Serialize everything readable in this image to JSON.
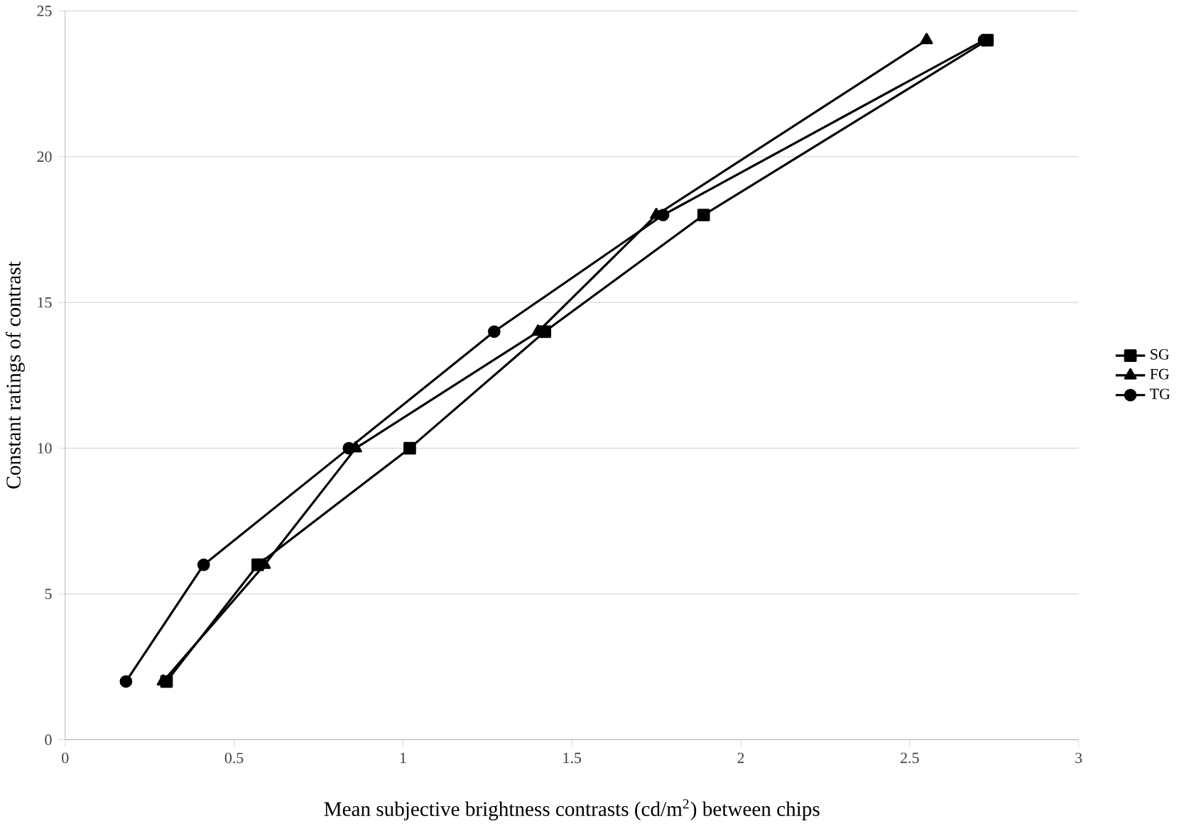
{
  "chart_data": {
    "type": "line",
    "xlabel": "Mean subjective brightness contrasts (cd/m$^{2}$) between chips",
    "ylabel": "Constant ratings of contrast",
    "xlim": [
      0,
      3
    ],
    "xticks": [
      0,
      0.5,
      1,
      1.5,
      2,
      2.5,
      3
    ],
    "ylim": [
      0,
      25
    ],
    "yticks": [
      0,
      5,
      10,
      15,
      20,
      25
    ],
    "grid": "y",
    "legend": "right",
    "color": "#000000",
    "series": [
      {
        "name": "SG",
        "marker": "square",
        "x": [
          0.3,
          0.57,
          1.02,
          1.42,
          1.89,
          2.73
        ],
        "values": [
          2,
          6,
          10,
          14,
          18,
          24
        ]
      },
      {
        "name": "FG",
        "marker": "triangle",
        "x": [
          0.29,
          0.59,
          0.86,
          1.4,
          1.75,
          2.55
        ],
        "values": [
          2,
          6,
          10,
          14,
          18,
          24
        ]
      },
      {
        "name": "TG",
        "marker": "circle",
        "x": [
          0.18,
          0.41,
          0.84,
          1.27,
          1.77,
          2.72
        ],
        "values": [
          2,
          6,
          10,
          14,
          18,
          24
        ]
      }
    ]
  }
}
